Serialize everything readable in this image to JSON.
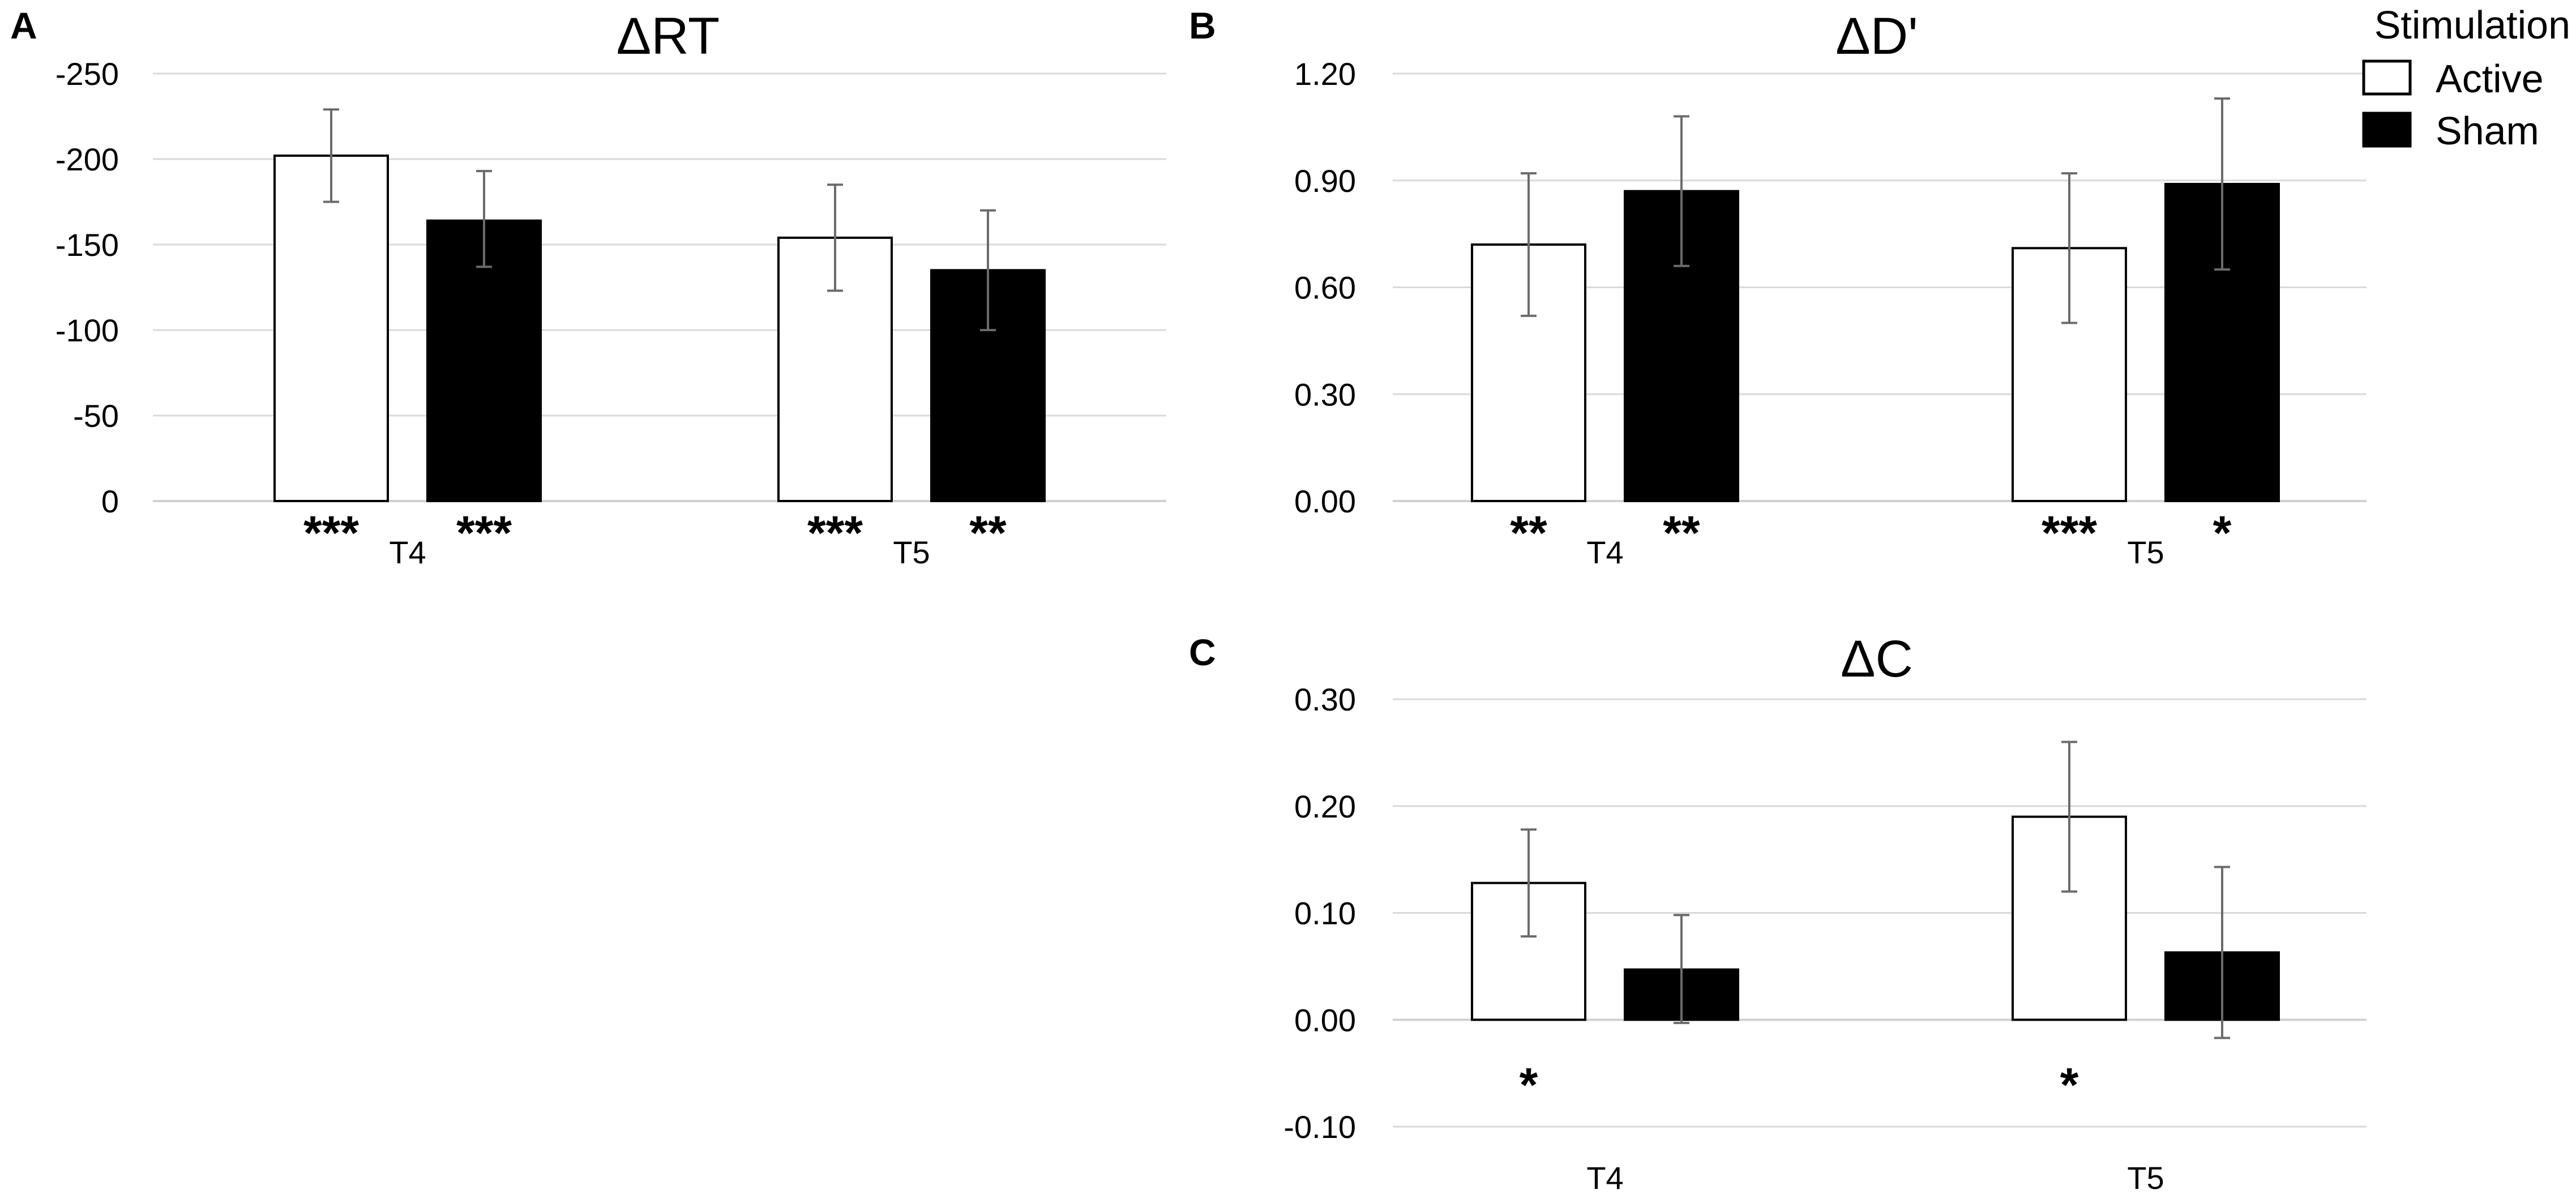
{
  "legend": {
    "title": "Stimulation",
    "items": [
      {
        "name": "Active",
        "fill": "#ffffff",
        "stroke": "#000000"
      },
      {
        "name": "Sham",
        "fill": "#000000",
        "stroke": "#000000"
      }
    ]
  },
  "chart_data": [
    {
      "panel": "A",
      "type": "bar",
      "title": "ΔRT",
      "categories": [
        "T4",
        "T5"
      ],
      "yticks": [
        {
          "value": 0,
          "label": "0"
        },
        {
          "value": -50,
          "label": "-50"
        },
        {
          "value": -100,
          "label": "-100"
        },
        {
          "value": -150,
          "label": "-150"
        },
        {
          "value": -200,
          "label": "-200"
        },
        {
          "value": -250,
          "label": "-250"
        }
      ],
      "ylim": [
        0,
        -250
      ],
      "series": [
        {
          "name": "Active",
          "values": [
            -202,
            -154
          ],
          "err_low": [
            -175,
            -123
          ],
          "err_high": [
            -229,
            -185
          ],
          "sig": [
            "***",
            "***"
          ]
        },
        {
          "name": "Sham",
          "values": [
            -164,
            -135
          ],
          "err_low": [
            -137,
            -100
          ],
          "err_high": [
            -193,
            -170
          ],
          "sig": [
            "***",
            "**"
          ]
        }
      ]
    },
    {
      "panel": "B",
      "type": "bar",
      "title": "ΔD'",
      "categories": [
        "T4",
        "T5"
      ],
      "yticks": [
        {
          "value": 0,
          "label": "0.00"
        },
        {
          "value": 0.3,
          "label": "0.30"
        },
        {
          "value": 0.6,
          "label": "0.60"
        },
        {
          "value": 0.9,
          "label": "0.90"
        },
        {
          "value": 1.2,
          "label": "1.20"
        }
      ],
      "ylim": [
        0,
        1.2
      ],
      "series": [
        {
          "name": "Active",
          "values": [
            0.72,
            0.71
          ],
          "err_low": [
            0.52,
            0.5
          ],
          "err_high": [
            0.92,
            0.92
          ],
          "sig": [
            "**",
            "***"
          ]
        },
        {
          "name": "Sham",
          "values": [
            0.87,
            0.89
          ],
          "err_low": [
            0.66,
            0.65
          ],
          "err_high": [
            1.08,
            1.13
          ],
          "sig": [
            "**",
            "*"
          ]
        }
      ]
    },
    {
      "panel": "C",
      "type": "bar",
      "title": "ΔC",
      "categories": [
        "T4",
        "T5"
      ],
      "yticks": [
        {
          "value": -0.1,
          "label": "-0.10"
        },
        {
          "value": 0,
          "label": "0.00"
        },
        {
          "value": 0.1,
          "label": "0.10"
        },
        {
          "value": 0.2,
          "label": "0.20"
        },
        {
          "value": 0.3,
          "label": "0.30"
        }
      ],
      "ylim": [
        -0.1,
        0.3
      ],
      "series": [
        {
          "name": "Active",
          "values": [
            0.128,
            0.19
          ],
          "err_low": [
            0.078,
            0.12
          ],
          "err_high": [
            0.178,
            0.26
          ],
          "sig": [
            "*",
            "*"
          ]
        },
        {
          "name": "Sham",
          "values": [
            0.047,
            0.063
          ],
          "err_low": [
            -0.003,
            -0.017
          ],
          "err_high": [
            0.098,
            0.143
          ],
          "sig": [
            "",
            ""
          ]
        }
      ]
    }
  ]
}
